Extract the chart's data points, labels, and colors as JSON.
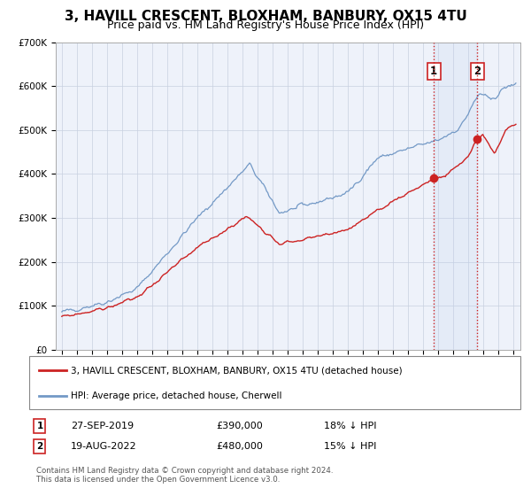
{
  "title": "3, HAVILL CRESCENT, BLOXHAM, BANBURY, OX15 4TU",
  "subtitle": "Price paid vs. HM Land Registry's House Price Index (HPI)",
  "ylim": [
    0,
    700000
  ],
  "yticks": [
    0,
    100000,
    200000,
    300000,
    400000,
    500000,
    600000,
    700000
  ],
  "ytick_labels": [
    "£0",
    "£100K",
    "£200K",
    "£300K",
    "£400K",
    "£500K",
    "£600K",
    "£700K"
  ],
  "xlim_start": 1994.6,
  "xlim_end": 2025.5,
  "hpi_color": "#7399c6",
  "price_color": "#cc2222",
  "marker1_price": 390000,
  "marker1_x": 2019.74,
  "marker2_price": 480000,
  "marker2_x": 2022.63,
  "marker1_date": "27-SEP-2019",
  "marker1_label": "18% ↓ HPI",
  "marker2_date": "19-AUG-2022",
  "marker2_label": "15% ↓ HPI",
  "legend_line1": "3, HAVILL CRESCENT, BLOXHAM, BANBURY, OX15 4TU (detached house)",
  "legend_line2": "HPI: Average price, detached house, Cherwell",
  "footnote": "Contains HM Land Registry data © Crown copyright and database right 2024.\nThis data is licensed under the Open Government Licence v3.0.",
  "plot_bg_color": "#eef2fa",
  "grid_color": "#c8d0e0",
  "title_fontsize": 11,
  "subtitle_fontsize": 9,
  "tick_fontsize": 7.5
}
